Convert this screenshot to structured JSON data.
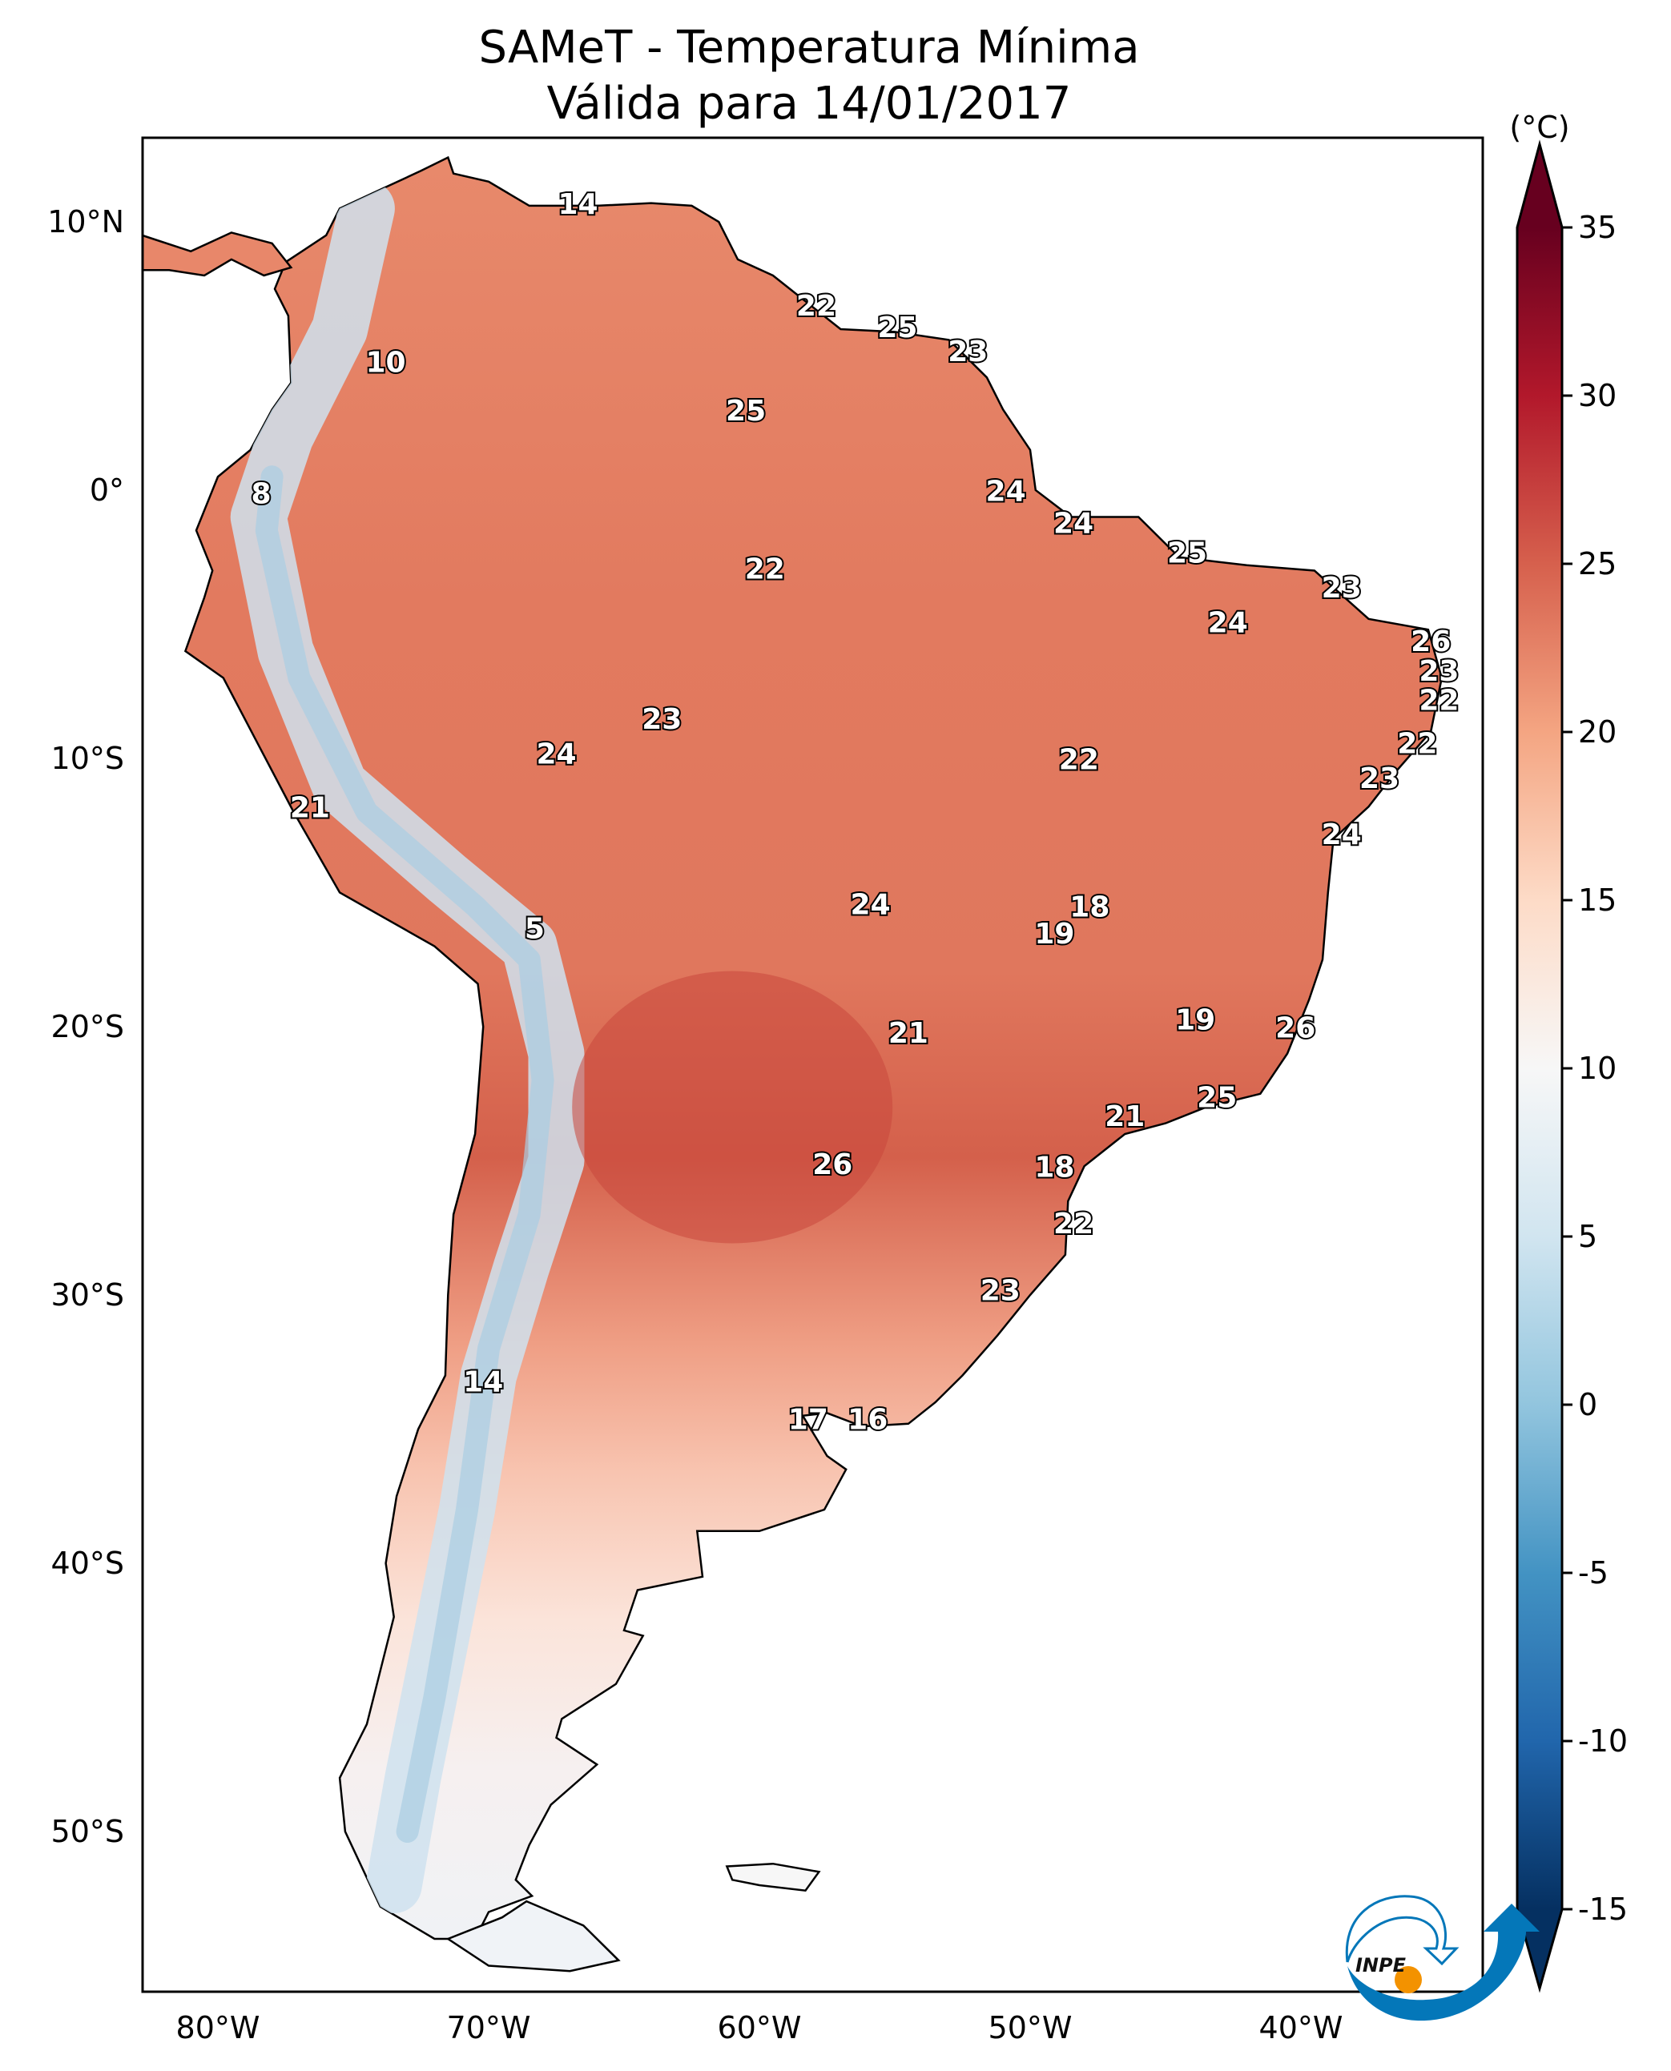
{
  "title": {
    "line1": "SAMeT - Temperatura Mínima",
    "line2": "Válida para 14/01/2017"
  },
  "colorbar": {
    "unit": "(°C)",
    "ticks": [
      "35",
      "30",
      "25",
      "20",
      "15",
      "10",
      "5",
      "0",
      "-5",
      "-10",
      "-15"
    ],
    "range": [
      -15,
      35
    ],
    "colormap": "RdBu_r",
    "stops": [
      {
        "v": -15,
        "c": "#053061"
      },
      {
        "v": -10,
        "c": "#2166ac"
      },
      {
        "v": -5,
        "c": "#4393c3"
      },
      {
        "v": 0,
        "c": "#92c5de"
      },
      {
        "v": 5,
        "c": "#d1e5f0"
      },
      {
        "v": 10,
        "c": "#f7f7f7"
      },
      {
        "v": 15,
        "c": "#fddbc7"
      },
      {
        "v": 20,
        "c": "#f4a582"
      },
      {
        "v": 25,
        "c": "#d6604d"
      },
      {
        "v": 30,
        "c": "#b2182b"
      },
      {
        "v": 35,
        "c": "#67001f"
      }
    ],
    "extend": "both"
  },
  "axes": {
    "lat_labels": [
      {
        "v": 10,
        "t": "10°N"
      },
      {
        "v": 0,
        "t": "0°"
      },
      {
        "v": -10,
        "t": "10°S"
      },
      {
        "v": -20,
        "t": "20°S"
      },
      {
        "v": -30,
        "t": "30°S"
      },
      {
        "v": -40,
        "t": "40°S"
      },
      {
        "v": -50,
        "t": "50°S"
      }
    ],
    "lon_labels": [
      {
        "v": -80,
        "t": "80°W"
      },
      {
        "v": -70,
        "t": "70°W"
      },
      {
        "v": -60,
        "t": "60°W"
      },
      {
        "v": -50,
        "t": "50°W"
      },
      {
        "v": -40,
        "t": "40°W"
      }
    ],
    "extent": {
      "lon": [
        -82.8,
        -33.3
      ],
      "lat": [
        -56,
        13.1
      ]
    }
  },
  "station_values": [
    {
      "t": "14",
      "lon": -66.7,
      "lat": 10.6
    },
    {
      "t": "22",
      "lon": -57.9,
      "lat": 6.8
    },
    {
      "t": "25",
      "lon": -54.9,
      "lat": 6.0
    },
    {
      "t": "23",
      "lon": -52.3,
      "lat": 5.1
    },
    {
      "t": "10",
      "lon": -73.8,
      "lat": 4.7
    },
    {
      "t": "25",
      "lon": -60.5,
      "lat": 2.9
    },
    {
      "t": "8",
      "lon": -78.4,
      "lat": -0.2
    },
    {
      "t": "24",
      "lon": -50.9,
      "lat": -0.1
    },
    {
      "t": "24",
      "lon": -48.4,
      "lat": -1.3
    },
    {
      "t": "22",
      "lon": -59.8,
      "lat": -3.0
    },
    {
      "t": "25",
      "lon": -44.2,
      "lat": -2.4
    },
    {
      "t": "23",
      "lon": -38.5,
      "lat": -3.7
    },
    {
      "t": "24",
      "lon": -42.7,
      "lat": -5.0
    },
    {
      "t": "26",
      "lon": -35.2,
      "lat": -5.7
    },
    {
      "t": "23",
      "lon": -34.9,
      "lat": -6.8
    },
    {
      "t": "22",
      "lon": -34.9,
      "lat": -7.9
    },
    {
      "t": "23",
      "lon": -63.6,
      "lat": -8.6
    },
    {
      "t": "22",
      "lon": -35.7,
      "lat": -9.5
    },
    {
      "t": "24",
      "lon": -67.5,
      "lat": -9.9
    },
    {
      "t": "22",
      "lon": -48.2,
      "lat": -10.1
    },
    {
      "t": "23",
      "lon": -37.1,
      "lat": -10.8
    },
    {
      "t": "21",
      "lon": -76.6,
      "lat": -11.9
    },
    {
      "t": "24",
      "lon": -38.5,
      "lat": -12.9
    },
    {
      "t": "18",
      "lon": -47.8,
      "lat": -15.6
    },
    {
      "t": "24",
      "lon": -55.9,
      "lat": -15.5
    },
    {
      "t": "5",
      "lon": -68.3,
      "lat": -16.4
    },
    {
      "t": "19",
      "lon": -49.1,
      "lat": -16.6
    },
    {
      "t": "19",
      "lon": -43.9,
      "lat": -19.8
    },
    {
      "t": "26",
      "lon": -40.2,
      "lat": -20.1
    },
    {
      "t": "21",
      "lon": -54.5,
      "lat": -20.3
    },
    {
      "t": "25",
      "lon": -43.1,
      "lat": -22.7
    },
    {
      "t": "21",
      "lon": -46.5,
      "lat": -23.4
    },
    {
      "t": "26",
      "lon": -57.3,
      "lat": -25.2
    },
    {
      "t": "18",
      "lon": -49.1,
      "lat": -25.3
    },
    {
      "t": "22",
      "lon": -48.4,
      "lat": -27.4
    },
    {
      "t": "23",
      "lon": -51.1,
      "lat": -29.9
    },
    {
      "t": "14",
      "lon": -70.2,
      "lat": -33.3
    },
    {
      "t": "17",
      "lon": -58.2,
      "lat": -34.7
    },
    {
      "t": "16",
      "lon": -56.0,
      "lat": -34.7
    }
  ],
  "logo": {
    "text": "INPE",
    "blue": "#0477b9",
    "orange": "#f39200"
  }
}
